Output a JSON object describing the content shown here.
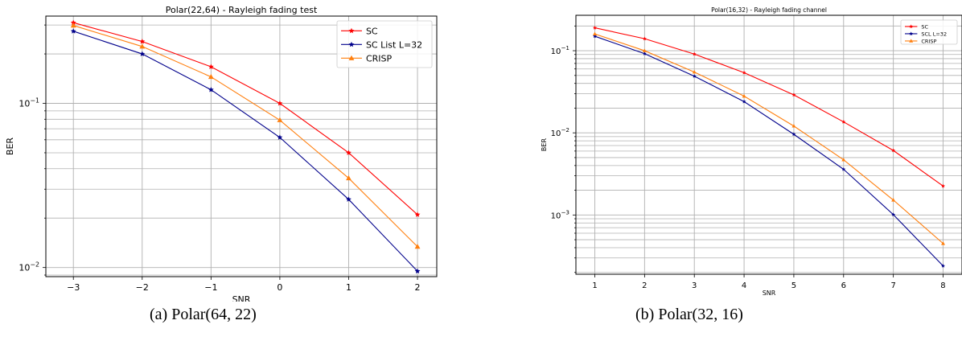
{
  "chart_data": [
    {
      "type": "line",
      "title": "Polar(22,64) - Rayleigh fading test",
      "xlabel": "SNR",
      "ylabel": "BER",
      "yscale": "log",
      "x": [
        -3,
        -2,
        -1,
        0,
        1,
        2
      ],
      "xticks": [
        "−3",
        "−2",
        "−1",
        "0",
        "1",
        "2"
      ],
      "xlim": [
        -3.4,
        2.28
      ],
      "ylim": [
        0.0088,
        0.34
      ],
      "yticks": [
        {
          "base": "10",
          "exp": "−1",
          "value": 0.1
        },
        {
          "base": "10",
          "exp": "−2",
          "value": 0.01
        }
      ],
      "grid": true,
      "legend": "top-right",
      "series": [
        {
          "name": "SC",
          "color": "#ff0000",
          "marker": "star",
          "values": [
            0.31,
            0.238,
            0.167,
            0.1,
            0.05,
            0.021
          ]
        },
        {
          "name": "SC List L=32",
          "color": "#00008b",
          "marker": "star",
          "values": [
            0.275,
            0.2,
            0.121,
            0.062,
            0.026,
            0.0095
          ]
        },
        {
          "name": "CRISP",
          "color": "#ff7f0e",
          "marker": "triangle",
          "values": [
            0.298,
            0.222,
            0.145,
            0.079,
            0.035,
            0.0134
          ]
        }
      ]
    },
    {
      "type": "line",
      "title": "Polar(16,32) - Rayleigh fading channel",
      "xlabel": "SNR",
      "ylabel": "BER",
      "yscale": "log",
      "x": [
        1,
        2,
        3,
        4,
        5,
        6,
        7,
        8
      ],
      "xticks": [
        "1",
        "2",
        "3",
        "4",
        "5",
        "6",
        "7",
        "8"
      ],
      "xlim": [
        0.62,
        8.38
      ],
      "ylim": [
        0.00019,
        0.27
      ],
      "yticks": [
        {
          "base": "10",
          "exp": "−1",
          "value": 0.1
        },
        {
          "base": "10",
          "exp": "−2",
          "value": 0.01
        },
        {
          "base": "10",
          "exp": "−3",
          "value": 0.001
        }
      ],
      "grid": true,
      "legend": "top-right",
      "series": [
        {
          "name": "SC",
          "color": "#ff0000",
          "marker": "star",
          "values": [
            0.19,
            0.14,
            0.091,
            0.054,
            0.029,
            0.0136,
            0.0061,
            0.00225
          ]
        },
        {
          "name": "SCL L=32",
          "color": "#00008b",
          "marker": "star",
          "values": [
            0.15,
            0.092,
            0.049,
            0.024,
            0.0096,
            0.0036,
            0.00101,
            0.00024
          ]
        },
        {
          "name": "CRISP",
          "color": "#ff7f0e",
          "marker": "triangle",
          "values": [
            0.16,
            0.1,
            0.055,
            0.028,
            0.0121,
            0.0047,
            0.00152,
            0.00045
          ]
        }
      ]
    }
  ],
  "captions": {
    "a": "(a) Polar(64, 22)",
    "b": "(b) Polar(32, 16)"
  }
}
